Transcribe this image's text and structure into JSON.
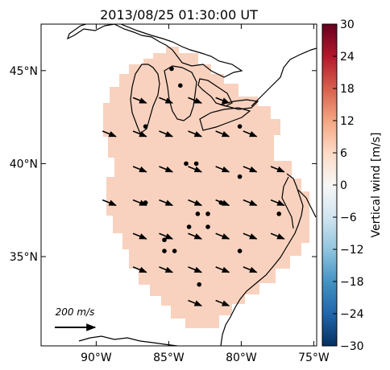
{
  "chart_data": {
    "type": "heatmap",
    "title": "2013/08/25 01:30:00 UT",
    "map": {
      "x_ticks": [
        {
          "value": -90,
          "label": "90°W"
        },
        {
          "value": -85,
          "label": "85°W"
        },
        {
          "value": -80,
          "label": "80°W"
        },
        {
          "value": -75,
          "label": "75°W"
        }
      ],
      "y_ticks": [
        {
          "value": 45,
          "label": "45°N"
        },
        {
          "value": 40,
          "label": "40°N"
        },
        {
          "value": 35,
          "label": "35°N"
        }
      ],
      "xlim": [
        -93.8,
        -74.8
      ],
      "ylim": [
        30.2,
        47.5
      ]
    },
    "field": {
      "value_m_s": 5,
      "fill_color": "#f8d2bf",
      "description_colors": {
        "coastline": "#000000",
        "land": "#ffffff"
      }
    },
    "colorbar": {
      "label": "Vertical wind [m/s]",
      "range": [
        -30,
        30
      ],
      "ticks": [
        30,
        24,
        18,
        12,
        6,
        0,
        -6,
        -12,
        -18,
        -24,
        -30
      ],
      "tick_labels": [
        "30",
        "24",
        "18",
        "12",
        "6",
        "0",
        "−6",
        "−12",
        "−18",
        "−24",
        "−30"
      ],
      "colormap": "RdBu_r"
    },
    "stations": [
      {
        "lon": -86.6,
        "lat": 42.0
      },
      {
        "lon": -84.2,
        "lat": 44.2
      },
      {
        "lon": -84.8,
        "lat": 45.1
      },
      {
        "lon": -80.1,
        "lat": 42.0
      },
      {
        "lon": -83.8,
        "lat": 40.0
      },
      {
        "lon": -83.1,
        "lat": 40.0
      },
      {
        "lon": -80.1,
        "lat": 39.3
      },
      {
        "lon": -86.6,
        "lat": 37.9
      },
      {
        "lon": -81.4,
        "lat": 37.9
      },
      {
        "lon": -83.0,
        "lat": 37.3
      },
      {
        "lon": -82.3,
        "lat": 37.3
      },
      {
        "lon": -77.4,
        "lat": 37.3
      },
      {
        "lon": -83.6,
        "lat": 36.6
      },
      {
        "lon": -82.3,
        "lat": 36.6
      },
      {
        "lon": -85.3,
        "lat": 35.9
      },
      {
        "lon": -85.3,
        "lat": 35.3
      },
      {
        "lon": -84.6,
        "lat": 35.3
      },
      {
        "lon": -80.1,
        "lat": 35.3
      },
      {
        "lon": -82.9,
        "lat": 33.5
      }
    ],
    "wind_arrow_direction_deg": -22,
    "wind_arrows": [
      {
        "lon": -87.0,
        "lat": 43.4
      },
      {
        "lon": -85.2,
        "lat": 43.4
      },
      {
        "lon": -83.2,
        "lat": 43.4
      },
      {
        "lon": -81.3,
        "lat": 43.4
      },
      {
        "lon": -89.1,
        "lat": 41.6
      },
      {
        "lon": -87.0,
        "lat": 41.6
      },
      {
        "lon": -85.2,
        "lat": 41.6
      },
      {
        "lon": -83.2,
        "lat": 41.6
      },
      {
        "lon": -81.3,
        "lat": 41.6
      },
      {
        "lon": -79.4,
        "lat": 41.6
      },
      {
        "lon": -87.0,
        "lat": 39.7
      },
      {
        "lon": -85.2,
        "lat": 39.7
      },
      {
        "lon": -83.2,
        "lat": 39.7
      },
      {
        "lon": -81.3,
        "lat": 39.7
      },
      {
        "lon": -79.4,
        "lat": 39.7
      },
      {
        "lon": -77.5,
        "lat": 39.7
      },
      {
        "lon": -89.1,
        "lat": 37.9
      },
      {
        "lon": -87.0,
        "lat": 37.9
      },
      {
        "lon": -85.2,
        "lat": 37.9
      },
      {
        "lon": -83.2,
        "lat": 37.9
      },
      {
        "lon": -81.3,
        "lat": 37.9
      },
      {
        "lon": -79.4,
        "lat": 37.9
      },
      {
        "lon": -77.5,
        "lat": 37.9
      },
      {
        "lon": -87.0,
        "lat": 36.1
      },
      {
        "lon": -85.2,
        "lat": 36.1
      },
      {
        "lon": -83.2,
        "lat": 36.1
      },
      {
        "lon": -81.3,
        "lat": 36.1
      },
      {
        "lon": -79.4,
        "lat": 36.1
      },
      {
        "lon": -77.5,
        "lat": 36.1
      },
      {
        "lon": -87.0,
        "lat": 34.3
      },
      {
        "lon": -85.2,
        "lat": 34.3
      },
      {
        "lon": -83.2,
        "lat": 34.3
      },
      {
        "lon": -81.3,
        "lat": 34.3
      },
      {
        "lon": -79.4,
        "lat": 34.3
      },
      {
        "lon": -83.2,
        "lat": 32.5
      },
      {
        "lon": -81.3,
        "lat": 32.5
      }
    ],
    "reference_arrow": {
      "value": 200,
      "label": "200 m/s"
    }
  }
}
